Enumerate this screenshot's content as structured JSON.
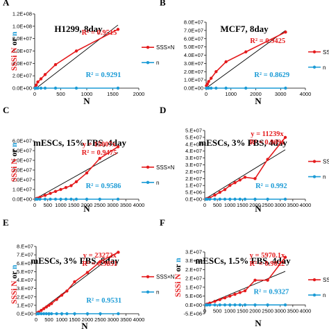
{
  "colors": {
    "sss": "#e41a1c",
    "n": "#1b9bd6",
    "fit": "#000000",
    "axis": "#000000"
  },
  "chart_data": [
    {
      "panel": "A",
      "type": "line",
      "title": "H1299, 8day",
      "xlabel": "",
      "ylabel_parts": [
        "SSSi",
        " N",
        " or ",
        "n"
      ],
      "xlim": [
        0,
        2000
      ],
      "xticks": [
        0,
        500,
        1000,
        1500,
        2000
      ],
      "ylim": [
        0,
        120000000
      ],
      "yticks": [
        0,
        20000000,
        40000000,
        60000000,
        80000000,
        100000000,
        120000000
      ],
      "ytick_labels": [
        "0.0E+00",
        "2.0E+07",
        "4.0E+07",
        "6.0E+07",
        "8.0E+07",
        "1.0E+08",
        "1.2E+08"
      ],
      "series": [
        {
          "name": "SSS×N",
          "color": "red",
          "x": [
            10,
            30,
            60,
            120,
            200,
            400,
            800,
            1600
          ],
          "y": [
            1500000,
            5000000,
            10000000,
            15000000,
            22000000,
            38000000,
            60000000,
            95000000
          ]
        },
        {
          "name": "n",
          "color": "blue",
          "x": [
            10,
            30,
            60,
            120,
            200,
            400,
            800,
            1600
          ],
          "y": [
            0,
            0,
            0,
            0,
            0,
            0,
            0,
            0
          ]
        }
      ],
      "fit": {
        "x0": 0,
        "x1": 1600,
        "y0": -2000000,
        "y1": 102000000
      },
      "annotations": {
        "equation": "",
        "r2_sss": "R² = 0.9515",
        "r2_n": "R² = 0.9291"
      },
      "legend_entries": [
        "SSS×N",
        "n"
      ]
    },
    {
      "panel": "B",
      "type": "line",
      "title": "MCF7, 8day",
      "xlabel": "",
      "ylabel_parts": [
        "",
        "",
        "",
        ""
      ],
      "xlim": [
        0,
        4000
      ],
      "xticks": [
        0,
        1000,
        2000,
        3000,
        4000
      ],
      "ylim": [
        0,
        80000000
      ],
      "yticks": [
        0,
        10000000,
        20000000,
        30000000,
        40000000,
        50000000,
        60000000,
        70000000,
        80000000
      ],
      "ytick_labels": [
        "0.0E+00",
        "1.0E+07",
        "2.0E+07",
        "3.0E+07",
        "4.0E+07",
        "5.0E+07",
        "6.0E+07",
        "7.0E+07",
        "8.0E+07"
      ],
      "series": [
        {
          "name": "SSS×N",
          "color": "red",
          "x": [
            10,
            50,
            100,
            200,
            400,
            800,
            1600,
            3200
          ],
          "y": [
            3000000,
            5000000,
            8000000,
            12000000,
            20000000,
            32000000,
            44000000,
            68000000
          ]
        },
        {
          "name": "n",
          "color": "blue",
          "x": [
            10,
            50,
            100,
            200,
            400,
            800,
            1600,
            3200
          ],
          "y": [
            0,
            0,
            0,
            0,
            0,
            0,
            0,
            0
          ]
        }
      ],
      "fit": {
        "x0": 0,
        "x1": 3200,
        "y0": 0,
        "y1": 70000000
      },
      "annotations": {
        "equation": "",
        "r2_sss": "R² = 0.9425",
        "r2_n": "R² = 0.8629"
      },
      "legend_entries": [
        "SSS×N",
        "n"
      ]
    },
    {
      "panel": "C",
      "type": "line",
      "title": "mESCs, 15% FBS, 4day",
      "xlabel": "",
      "ylabel_parts": [
        "SSSi",
        " N",
        " or ",
        "n"
      ],
      "xlim": [
        0,
        4000
      ],
      "xticks": [
        0,
        500,
        1000,
        1500,
        2000,
        2500,
        3000,
        3500,
        4000
      ],
      "ylim": [
        0,
        60000000
      ],
      "yticks": [
        0,
        10000000,
        20000000,
        30000000,
        40000000,
        50000000,
        60000000
      ],
      "ytick_labels": [
        "0.0E+00",
        "1.0E+07",
        "2.0E+07",
        "3.0E+07",
        "4.0E+07",
        "5.0E+07",
        "6.0E+07"
      ],
      "series": [
        {
          "name": "SSS×N",
          "color": "red",
          "x": [
            50,
            100,
            200,
            400,
            600,
            800,
            1000,
            1200,
            1400,
            1600,
            2000,
            2500,
            3200
          ],
          "y": [
            500000,
            1000000,
            2000000,
            4000000,
            6000000,
            8000000,
            10000000,
            12000000,
            14000000,
            18000000,
            27000000,
            42000000,
            54000000
          ]
        },
        {
          "name": "n",
          "color": "blue",
          "x": [
            50,
            100,
            200,
            400,
            600,
            800,
            1000,
            1200,
            1400,
            1600,
            2000,
            2500,
            3200
          ],
          "y": [
            0,
            0,
            0,
            0,
            0,
            0,
            0,
            0,
            0,
            0,
            0,
            0,
            0
          ]
        }
      ],
      "fit": {
        "x0": 0,
        "x1": 3200,
        "y0": 0,
        "y1": 48000000
      },
      "annotations": {
        "equation": "y = 15007x",
        "r2_sss": "R² = 0.9475",
        "r2_n": "R² = 0.9586"
      },
      "legend_entries": [
        "SSS×N",
        "n"
      ]
    },
    {
      "panel": "D",
      "type": "line",
      "title": "mESCs, 3% FBS, 4day",
      "xlabel": "",
      "ylabel_parts": [
        "",
        "",
        "",
        ""
      ],
      "xlim": [
        0,
        4000
      ],
      "xticks": [
        0,
        500,
        1000,
        1500,
        2000,
        2500,
        3000,
        3500,
        4000
      ],
      "ylim": [
        0,
        50000000
      ],
      "yticks": [
        0,
        5000000,
        10000000,
        15000000,
        20000000,
        25000000,
        30000000,
        35000000,
        40000000,
        45000000,
        50000000
      ],
      "ytick_labels": [
        "0.E+00",
        "5.E+06",
        "1.E+07",
        "2.E+07",
        "2.E+07",
        "3.E+07",
        "3.E+07",
        "4.E+07",
        "4.E+07",
        "5.E+07",
        "5.E+07"
      ],
      "series": [
        {
          "name": "SSS×N",
          "color": "red",
          "x": [
            50,
            100,
            200,
            400,
            600,
            800,
            1000,
            1200,
            1400,
            1600,
            2000,
            2500,
            3200
          ],
          "y": [
            200000,
            500000,
            1000000,
            3000000,
            5000000,
            7000000,
            10000000,
            12000000,
            14000000,
            16000000,
            15000000,
            29000000,
            45000000
          ]
        },
        {
          "name": "n",
          "color": "blue",
          "x": [
            50,
            100,
            200,
            400,
            600,
            800,
            1000,
            1200,
            1400,
            1600,
            2000,
            2500,
            3200
          ],
          "y": [
            0,
            0,
            0,
            0,
            0,
            0,
            0,
            0,
            0,
            0,
            0,
            0,
            0
          ]
        }
      ],
      "fit": {
        "x0": 0,
        "x1": 3200,
        "y0": 0,
        "y1": 36000000
      },
      "annotations": {
        "equation": "y = 11239x",
        "r2_sss": "R² = 0.9091",
        "r2_n": "R² = 0.992"
      },
      "legend_entries": [
        "SSS×N",
        "n"
      ]
    },
    {
      "panel": "E",
      "type": "line",
      "title": "mESCs, 3% FBS, 8day",
      "xlabel": "",
      "ylabel_parts": [
        "SSSi",
        " N",
        " or ",
        "n"
      ],
      "xlim": [
        0,
        4000
      ],
      "xticks": [
        0,
        500,
        1000,
        1500,
        2000,
        2500,
        3000,
        3500,
        4000
      ],
      "ylim": [
        0,
        80000000
      ],
      "yticks": [
        0,
        10000000,
        20000000,
        30000000,
        40000000,
        50000000,
        60000000,
        70000000,
        80000000
      ],
      "ytick_labels": [
        "0.E+00",
        "1.E+07",
        "2.E+07",
        "3.E+07",
        "4.E+07",
        "5.E+07",
        "6.E+07",
        "7.E+07",
        "8.E+07"
      ],
      "series": [
        {
          "name": "SSS×N",
          "color": "red",
          "x": [
            50,
            100,
            200,
            300,
            400,
            500,
            600,
            800,
            1000,
            1200,
            1500,
            2000,
            2500,
            3200
          ],
          "y": [
            1000000,
            2000000,
            4000000,
            6000000,
            8000000,
            10000000,
            12000000,
            17000000,
            22000000,
            27000000,
            38000000,
            49000000,
            62000000,
            73000000
          ]
        },
        {
          "name": "n",
          "color": "blue",
          "x": [
            50,
            100,
            200,
            300,
            400,
            500,
            600,
            800,
            1000,
            1200,
            1500,
            2000,
            2500,
            3200
          ],
          "y": [
            0,
            0,
            0,
            0,
            0,
            0,
            0,
            0,
            0,
            0,
            0,
            0,
            0,
            0
          ]
        }
      ],
      "fit": {
        "x0": 0,
        "x1": 3200,
        "y0": 0,
        "y1": 74000000
      },
      "annotations": {
        "equation": "y = 23272x",
        "r2_sss": "R² = 0.9851",
        "r2_n": "R² = 0.9531"
      },
      "legend_entries": [
        "SSS×N",
        "n"
      ]
    },
    {
      "panel": "F",
      "type": "line",
      "title": "mESCs, 1.5% FBS, 4day",
      "xlabel": "N",
      "ylabel_parts": [
        "SSSi",
        " N",
        " or ",
        "n"
      ],
      "xlim": [
        0,
        4000
      ],
      "xticks": [
        0,
        500,
        1000,
        1500,
        2000,
        2500,
        3000,
        3500,
        4000
      ],
      "ylim": [
        -5000000,
        30000000
      ],
      "yticks": [
        -5000000,
        0,
        5000000,
        10000000,
        15000000,
        20000000,
        25000000,
        30000000
      ],
      "ytick_labels": [
        "-5.E+06",
        "0.E+00",
        "5.E+06",
        "1.E+07",
        "2.E+07",
        "2.E+07",
        "3.E+07",
        "3.E+07"
      ],
      "series": [
        {
          "name": "SSS×N",
          "color": "red",
          "x": [
            50,
            100,
            200,
            400,
            600,
            800,
            1000,
            1200,
            1400,
            1600,
            2000,
            2500,
            3200
          ],
          "y": [
            200000,
            500000,
            1000000,
            2000000,
            3000000,
            4000000,
            5000000,
            6000000,
            7000000,
            8000000,
            14000000,
            14000000,
            27000000
          ]
        },
        {
          "name": "n",
          "color": "blue",
          "x": [
            50,
            100,
            200,
            400,
            600,
            800,
            1000,
            1200,
            1400,
            1600,
            2000,
            2500,
            3200
          ],
          "y": [
            0,
            0,
            0,
            0,
            0,
            0,
            0,
            0,
            0,
            0,
            0,
            0,
            0
          ]
        }
      ],
      "fit": {
        "x0": 0,
        "x1": 3200,
        "y0": 0,
        "y1": 19000000
      },
      "annotations": {
        "equation": "y = 5970.1x",
        "r2_sss": "R² = 0.9022",
        "r2_n": "R² = 0.9327"
      },
      "legend_entries": [
        "SSS×N",
        "n"
      ]
    }
  ],
  "bottom_labels": {
    "left": "N",
    "right": "N"
  }
}
